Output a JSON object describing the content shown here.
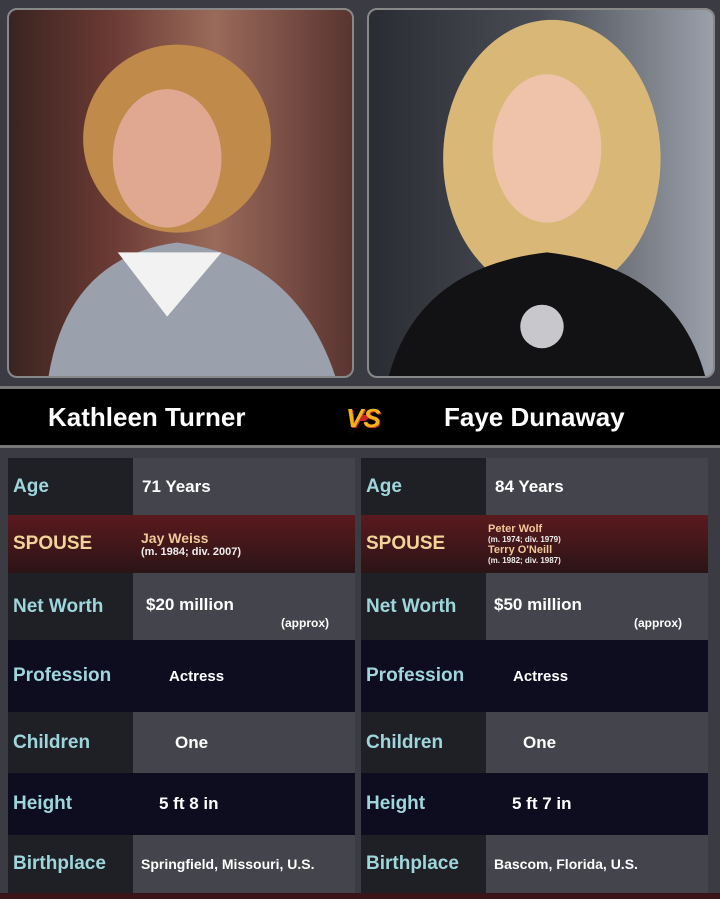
{
  "people": [
    {
      "name": "Kathleen Turner",
      "age": "71 Years",
      "spouse": [
        {
          "name": "Jay Weiss",
          "dates": "(m. 1984; div. 2007)"
        }
      ],
      "net_worth": "$20 million",
      "net_worth_note": "(approx)",
      "profession": "Actress",
      "children": "One",
      "height": "5 ft 8 in",
      "birthplace": "Springfield, Missouri, U.S."
    },
    {
      "name": "Faye Dunaway",
      "age": "84 Years",
      "spouse": [
        {
          "name": "Peter Wolf",
          "dates": "(m. 1974; div. 1979)"
        },
        {
          "name": "Terry O'Neill",
          "dates": "(m. 1982; div. 1987)"
        }
      ],
      "net_worth": "$50 million",
      "net_worth_note": "(approx)",
      "profession": "Actress",
      "children": "One",
      "height": "5 ft 7 in",
      "birthplace": "Bascom, Florida, U.S."
    }
  ],
  "vs_label": "VS",
  "labels": {
    "age": "Age",
    "spouse": "SPOUSE",
    "net_worth": "Net Worth",
    "profession": "Profession",
    "children": "Children",
    "height": "Height",
    "birthplace": "Birthplace"
  }
}
